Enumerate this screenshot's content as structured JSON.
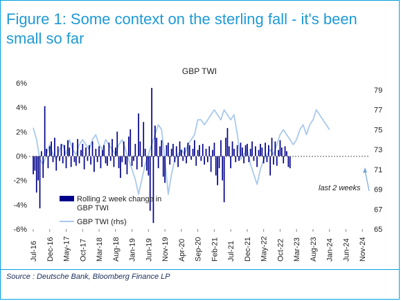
{
  "figure_title": "Figure 1: Some context on the sterling fall - it's been small so far",
  "source": "Source : Deutsche Bank, Bloomberg Finance LP",
  "chart_data": {
    "type": "bar",
    "title": "GBP TWI",
    "colors": {
      "bars": "#00008b",
      "line": "#a9c9ee",
      "frame": "#00a0dc",
      "title": "#1e9ad6"
    },
    "x_tick_labels": [
      "Jul-16",
      "Dec-16",
      "May-17",
      "Oct-17",
      "Mar-18",
      "Aug-18",
      "Jan-19",
      "Jun-19",
      "Nov-19",
      "Apr-20",
      "Sep-20",
      "Feb-21",
      "Jul-21",
      "Dec-21",
      "May-22",
      "Oct-22",
      "Mar-23",
      "Aug-23",
      "Jan-24",
      "Jun-24",
      "Nov-24"
    ],
    "left_axis": {
      "ylim": [
        -6,
        6
      ],
      "ticks": [
        -6,
        -4,
        -2,
        0,
        2,
        4,
        6
      ],
      "tick_labels": [
        "-6%",
        "-4%",
        "-2%",
        "0%",
        "2%",
        "4%",
        "6%"
      ]
    },
    "right_axis": {
      "ylim": [
        65,
        79
      ],
      "ticks": [
        65,
        67,
        69,
        71,
        73,
        75,
        77,
        79
      ],
      "tick_labels": [
        "65",
        "67",
        "69",
        "71",
        "73",
        "75",
        "77",
        "79"
      ]
    },
    "legend": {
      "placement": "lower-left",
      "entries": [
        "Rolling 2 week change in GBP TWI",
        "GBP TWI (rhs)"
      ]
    },
    "annotation": "last 2 weeks",
    "series": [
      {
        "name": "Rolling 2 week change in GBP TWI",
        "axis": "left",
        "type": "bar",
        "x_step_months": 0.5,
        "x_start": "Jul-16",
        "values": [
          -1.5,
          -1.2,
          -3.0,
          -2.0,
          -4.3,
          0.4,
          -1.8,
          4.1,
          0.6,
          -1.0,
          0.8,
          1.2,
          -0.5,
          1.5,
          -1.2,
          0.8,
          -0.4,
          1.0,
          -0.6,
          0.9,
          -1.0,
          1.3,
          0.7,
          -0.9,
          1.1,
          -0.5,
          -0.8,
          1.4,
          -0.6,
          0.5,
          1.0,
          -1.1,
          0.7,
          -0.4,
          0.9,
          -0.7,
          1.2,
          -1.3,
          0.6,
          -0.5,
          0.8,
          -1.0,
          0.5,
          0.9,
          -0.6,
          -0.8,
          1.1,
          -0.4,
          1.4,
          -0.9,
          0.7,
          2.0,
          -1.0,
          -1.8,
          -0.5,
          1.2,
          -0.7,
          -1.5,
          1.6,
          2.2,
          -0.8,
          -0.4,
          1.0,
          -1.1,
          3.5,
          1.2,
          -0.9,
          2.8,
          0.6,
          -1.2,
          -1.6,
          -4.5,
          5.6,
          -5.5,
          2.5,
          1.5,
          -1.0,
          0.8,
          1.3,
          -1.7,
          -2.2,
          0.9,
          1.1,
          -0.7,
          0.6,
          1.0,
          -0.5,
          0.8,
          -0.9,
          1.2,
          0.5,
          -0.4,
          0.7,
          -0.6,
          1.1,
          0.9,
          -0.3,
          0.6,
          1.3,
          -0.8,
          0.5,
          0.9,
          -0.4,
          1.0,
          -0.7,
          0.6,
          -0.5,
          0.8,
          -1.3,
          0.5,
          1.1,
          -1.6,
          -2.4,
          -1.0,
          1.3,
          -2.0,
          -3.8,
          1.5,
          2.3,
          0.8,
          -1.0,
          1.2,
          0.6,
          -0.5,
          0.9,
          -0.4,
          1.1,
          0.7,
          -0.6,
          0.9,
          1.0,
          -0.5,
          0.6,
          1.2,
          -0.4,
          0.8,
          -0.9,
          0.5,
          1.0,
          0.7,
          -0.6,
          1.1,
          -0.5,
          0.9,
          -1.6,
          1.5,
          -0.7,
          1.2,
          -0.8,
          0.5,
          1.3,
          0.7,
          -0.6,
          0.8,
          0.4,
          -0.9,
          -1.0
        ]
      },
      {
        "name": "GBP TWI (rhs)",
        "axis": "right",
        "type": "line",
        "x_step_months": 1,
        "x_start": "Jul-16",
        "values": [
          75.2,
          74.0,
          72.0,
          71.5,
          72.5,
          73.5,
          72.5,
          72.0,
          73.0,
          73.5,
          72.5,
          74.0,
          73.0,
          72.5,
          73.5,
          74.0,
          73.5,
          73.0,
          74.0,
          74.5,
          73.5,
          73.0,
          74.0,
          73.5,
          73.0,
          72.5,
          73.5,
          74.0,
          73.0,
          72.0,
          71.0,
          70.0,
          68.5,
          70.0,
          71.5,
          72.5,
          73.5,
          74.5,
          75.5,
          75.0,
          72.0,
          68.5,
          70.5,
          72.0,
          72.5,
          73.0,
          72.5,
          73.5,
          74.0,
          74.5,
          76.0,
          76.0,
          75.5,
          76.0,
          76.5,
          77.0,
          76.5,
          76.0,
          77.0,
          76.5,
          76.0,
          76.5,
          74.5,
          72.0,
          72.5,
          73.0,
          71.5,
          70.5,
          69.5,
          71.0,
          72.0,
          72.5,
          73.0,
          72.5,
          73.5,
          74.5,
          75.0,
          74.5,
          74.0,
          73.5,
          74.0,
          75.0,
          75.5,
          74.5,
          75.5,
          76.0,
          77.0,
          76.5,
          76.0,
          75.5,
          75.0
        ]
      }
    ]
  }
}
